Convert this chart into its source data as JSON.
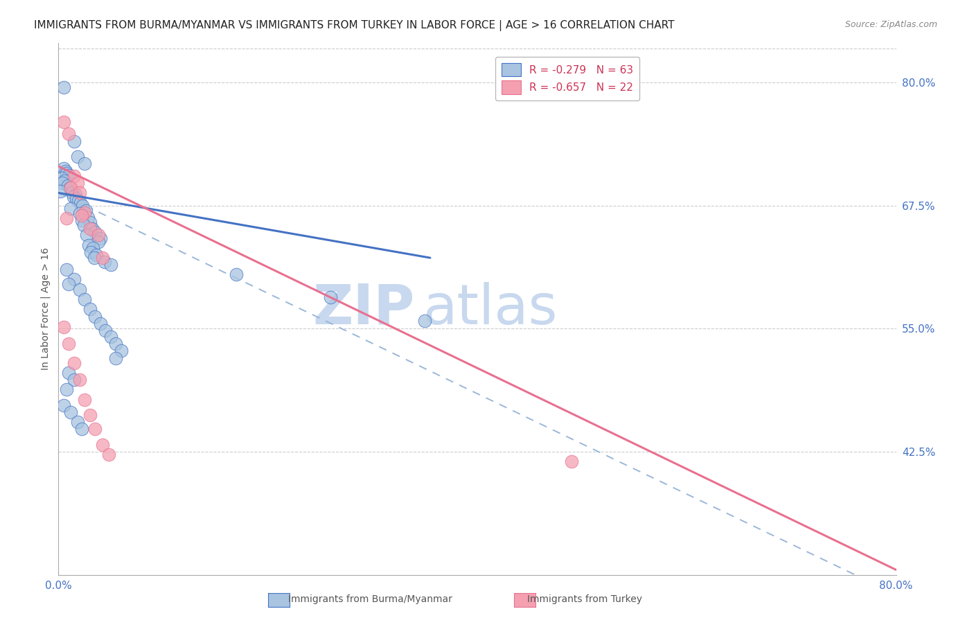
{
  "title": "IMMIGRANTS FROM BURMA/MYANMAR VS IMMIGRANTS FROM TURKEY IN LABOR FORCE | AGE > 16 CORRELATION CHART",
  "source": "Source: ZipAtlas.com",
  "ylabel": "In Labor Force | Age > 16",
  "xmin": 0.0,
  "xmax": 0.8,
  "ymin": 0.3,
  "ymax": 0.84,
  "yticks": [
    0.425,
    0.55,
    0.675,
    0.8
  ],
  "ytick_labels": [
    "42.5%",
    "55.0%",
    "67.5%",
    "80.0%"
  ],
  "xticks": [
    0.0,
    0.1,
    0.2,
    0.3,
    0.4,
    0.5,
    0.6,
    0.7,
    0.8
  ],
  "xtick_labels": [
    "0.0%",
    "",
    "",
    "",
    "",
    "",
    "",
    "",
    "80.0%"
  ],
  "legend_items": [
    {
      "label": "R = -0.279   N = 63",
      "color": "#a8c4e0"
    },
    {
      "label": "R = -0.657   N = 22",
      "color": "#f4a0b0"
    }
  ],
  "blue_scatter": [
    [
      0.005,
      0.795
    ],
    [
      0.015,
      0.74
    ],
    [
      0.018,
      0.725
    ],
    [
      0.025,
      0.718
    ],
    [
      0.005,
      0.713
    ],
    [
      0.007,
      0.71
    ],
    [
      0.008,
      0.708
    ],
    [
      0.01,
      0.706
    ],
    [
      0.003,
      0.703
    ],
    [
      0.006,
      0.7
    ],
    [
      0.004,
      0.698
    ],
    [
      0.009,
      0.695
    ],
    [
      0.011,
      0.693
    ],
    [
      0.002,
      0.69
    ],
    [
      0.013,
      0.688
    ],
    [
      0.016,
      0.686
    ],
    [
      0.014,
      0.684
    ],
    [
      0.017,
      0.682
    ],
    [
      0.019,
      0.68
    ],
    [
      0.021,
      0.678
    ],
    [
      0.023,
      0.675
    ],
    [
      0.012,
      0.672
    ],
    [
      0.026,
      0.67
    ],
    [
      0.02,
      0.667
    ],
    [
      0.028,
      0.663
    ],
    [
      0.022,
      0.66
    ],
    [
      0.03,
      0.658
    ],
    [
      0.024,
      0.655
    ],
    [
      0.032,
      0.652
    ],
    [
      0.035,
      0.648
    ],
    [
      0.027,
      0.645
    ],
    [
      0.04,
      0.642
    ],
    [
      0.038,
      0.638
    ],
    [
      0.029,
      0.635
    ],
    [
      0.033,
      0.632
    ],
    [
      0.031,
      0.628
    ],
    [
      0.036,
      0.625
    ],
    [
      0.034,
      0.622
    ],
    [
      0.044,
      0.618
    ],
    [
      0.05,
      0.615
    ],
    [
      0.008,
      0.61
    ],
    [
      0.015,
      0.6
    ],
    [
      0.01,
      0.595
    ],
    [
      0.02,
      0.59
    ],
    [
      0.025,
      0.58
    ],
    [
      0.03,
      0.57
    ],
    [
      0.035,
      0.562
    ],
    [
      0.04,
      0.555
    ],
    [
      0.045,
      0.548
    ],
    [
      0.05,
      0.542
    ],
    [
      0.055,
      0.535
    ],
    [
      0.06,
      0.528
    ],
    [
      0.055,
      0.52
    ],
    [
      0.01,
      0.505
    ],
    [
      0.015,
      0.498
    ],
    [
      0.008,
      0.488
    ],
    [
      0.005,
      0.472
    ],
    [
      0.012,
      0.465
    ],
    [
      0.018,
      0.455
    ],
    [
      0.022,
      0.448
    ],
    [
      0.17,
      0.605
    ],
    [
      0.26,
      0.582
    ],
    [
      0.35,
      0.558
    ]
  ],
  "pink_scatter": [
    [
      0.005,
      0.76
    ],
    [
      0.01,
      0.748
    ],
    [
      0.015,
      0.705
    ],
    [
      0.018,
      0.698
    ],
    [
      0.012,
      0.693
    ],
    [
      0.02,
      0.688
    ],
    [
      0.025,
      0.668
    ],
    [
      0.008,
      0.662
    ],
    [
      0.03,
      0.652
    ],
    [
      0.038,
      0.645
    ],
    [
      0.042,
      0.622
    ],
    [
      0.022,
      0.665
    ],
    [
      0.005,
      0.552
    ],
    [
      0.01,
      0.535
    ],
    [
      0.015,
      0.515
    ],
    [
      0.02,
      0.498
    ],
    [
      0.025,
      0.478
    ],
    [
      0.03,
      0.462
    ],
    [
      0.035,
      0.448
    ],
    [
      0.042,
      0.432
    ],
    [
      0.048,
      0.422
    ],
    [
      0.49,
      0.415
    ]
  ],
  "blue_line_x": [
    0.0,
    0.355
  ],
  "blue_line_y": [
    0.688,
    0.622
  ],
  "pink_line_x": [
    0.0,
    0.8
  ],
  "pink_line_y": [
    0.715,
    0.305
  ],
  "dashed_line_x": [
    0.0,
    0.8
  ],
  "dashed_line_y": [
    0.688,
    0.28
  ],
  "blue_color": "#4472c4",
  "pink_color": "#e87090",
  "blue_scatter_color": "#a8c4e0",
  "pink_scatter_color": "#f4a0b0",
  "dashed_color": "#9ab7d8",
  "watermark_zip_color": "#c8d8ee",
  "watermark_atlas_color": "#c8d8ee",
  "background_color": "#ffffff",
  "grid_color": "#cccccc",
  "tick_color": "#4472c4",
  "title_fontsize": 11,
  "source_fontsize": 9,
  "axis_label_fontsize": 10,
  "legend_fontsize": 11,
  "bottom_legend_label1": "Immigrants from Burma/Myanmar",
  "bottom_legend_label2": "Immigrants from Turkey"
}
